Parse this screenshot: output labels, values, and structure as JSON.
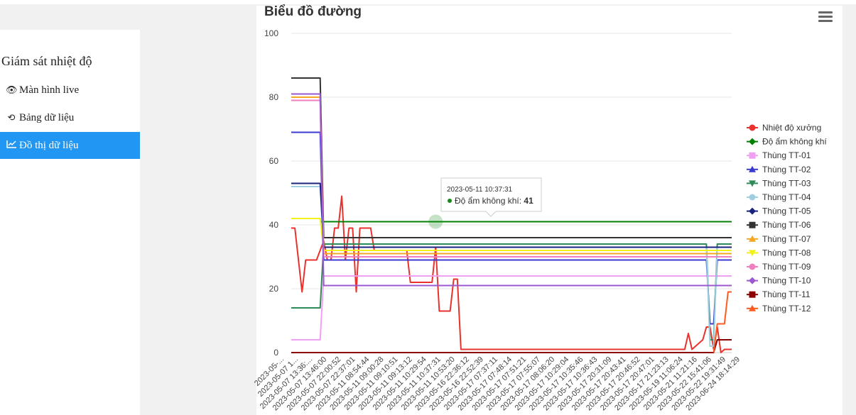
{
  "sidebar": {
    "title": "Giám sát nhiệt độ",
    "items": [
      {
        "label": "Màn hình live",
        "icon": "eye-icon",
        "glyph": "👁",
        "active": false
      },
      {
        "label": "Bảng dữ liệu",
        "icon": "history-icon",
        "glyph": "⟲",
        "active": false
      },
      {
        "label": "Đồ thị dữ liệu",
        "icon": "line-chart-icon",
        "glyph": "📈",
        "active": true
      }
    ]
  },
  "chart": {
    "title": "Biểu đồ đường",
    "menu_icon": "hamburger-menu-icon"
  },
  "tooltip": {
    "time": "2023-05-11 10:37:31",
    "series": "Độ ẩm không khí",
    "value": "41",
    "color": "#1a8a1a"
  },
  "chart_data": {
    "type": "line",
    "ylim": [
      0,
      100
    ],
    "yticks": [
      0,
      20,
      40,
      60,
      80,
      100
    ],
    "grid": true,
    "legend_position": "right",
    "categories": [
      "2023-05-...",
      "2023-05-07 1...",
      "2023-05-07 13:36:...",
      "2023-05-07 13:46:00",
      "2023-05-07 22:00:52",
      "2023-05-07 22:37:01",
      "2023-05-11 08:54:44",
      "2023-05-11 09:00:28",
      "2023-05-11 09:10:51",
      "2023-05-11 09:13:12",
      "2023-05-11 10:29:54",
      "2023-05-11 10:37:31",
      "2023-05-11 10:53:20",
      "2023-05-16 22:36:12",
      "2023-05-16 22:52:39",
      "2023-05-17 07:37:11",
      "2023-05-17 07:48:14",
      "2023-05-17 07:51:21",
      "2023-05-17 07:55:07",
      "2023-05-17 08:06:20",
      "2023-05-17 10:29:04",
      "2023-05-17 10:35:46",
      "2023-05-17 10:36:43",
      "2023-05-17 20:31:09",
      "2023-05-17 20:43:41",
      "2023-05-17 20:46:52",
      "2023-05-17 20:47:01",
      "2023-05-17 21:23:13",
      "2023-05-19 11:06:24",
      "2023-05-21 11:21:16",
      "2023-05-22 15:41:06",
      "2023-05-22 19:31:49",
      "2023-06-24 18:14:29"
    ],
    "series": [
      {
        "name": "Nhiệt độ xưởng",
        "color": "#e8322d",
        "marker": "circle",
        "points": [
          [
            0,
            39
          ],
          [
            1,
            39
          ],
          [
            3,
            19
          ],
          [
            4,
            29
          ],
          [
            7,
            29
          ],
          [
            9,
            35
          ],
          [
            10,
            29
          ],
          [
            11,
            29
          ],
          [
            12,
            39
          ],
          [
            13,
            39
          ],
          [
            14,
            49
          ],
          [
            15,
            29
          ],
          [
            16,
            39
          ],
          [
            17,
            39
          ],
          [
            18,
            19
          ],
          [
            19,
            39
          ],
          [
            22,
            39
          ],
          [
            23,
            32
          ],
          [
            32,
            32
          ],
          [
            33,
            22
          ],
          [
            39,
            22
          ],
          [
            40,
            33
          ],
          [
            41,
            13
          ],
          [
            44,
            13
          ],
          [
            45,
            23
          ],
          [
            46,
            23
          ],
          [
            47,
            1
          ],
          [
            109,
            1
          ],
          [
            110,
            6
          ],
          [
            111,
            1
          ],
          [
            114,
            4
          ],
          [
            115,
            8
          ],
          [
            116,
            8
          ],
          [
            117,
            1
          ],
          [
            118,
            8
          ],
          [
            119,
            0
          ],
          [
            120,
            1
          ],
          [
            122,
            1
          ]
        ]
      },
      {
        "name": "Độ ẩm không khí",
        "color": "#008000",
        "marker": "diamond",
        "points": [
          [
            8,
            41
          ],
          [
            122,
            41
          ]
        ]
      },
      {
        "name": "Thùng TT-01",
        "color": "#f0a0f0",
        "marker": "square",
        "points": [
          [
            0,
            4
          ],
          [
            8,
            4
          ],
          [
            9,
            24
          ],
          [
            122,
            24
          ]
        ]
      },
      {
        "name": "Thùng TT-02",
        "color": "#3a3ad0",
        "marker": "triangle",
        "points": [
          [
            0,
            69
          ],
          [
            8,
            69
          ],
          [
            9,
            29
          ],
          [
            115,
            29
          ],
          [
            116,
            9
          ],
          [
            117,
            9
          ],
          [
            118,
            29
          ],
          [
            122,
            29
          ]
        ]
      },
      {
        "name": "Thùng TT-03",
        "color": "#2e8b57",
        "marker": "triangle-down",
        "points": [
          [
            0,
            14
          ],
          [
            8,
            14
          ],
          [
            9,
            34
          ],
          [
            115,
            34
          ],
          [
            116,
            4
          ],
          [
            117,
            4
          ],
          [
            118,
            34
          ],
          [
            122,
            34
          ]
        ]
      },
      {
        "name": "Thùng TT-04",
        "color": "#9fcfe0",
        "marker": "circle",
        "points": [
          [
            0,
            52
          ],
          [
            8,
            52
          ],
          [
            9,
            33
          ],
          [
            115,
            33
          ],
          [
            116,
            2
          ],
          [
            117,
            2
          ],
          [
            118,
            33
          ],
          [
            122,
            33
          ]
        ]
      },
      {
        "name": "Thùng TT-05",
        "color": "#1a237e",
        "marker": "diamond",
        "points": [
          [
            0,
            53
          ],
          [
            8,
            53
          ],
          [
            9,
            33
          ],
          [
            122,
            33
          ]
        ]
      },
      {
        "name": "Thùng TT-06",
        "color": "#333333",
        "marker": "square",
        "points": [
          [
            0,
            86
          ],
          [
            8,
            86
          ],
          [
            9,
            36
          ],
          [
            122,
            36
          ]
        ]
      },
      {
        "name": "Thùng TT-07",
        "color": "#f5a623",
        "marker": "triangle",
        "points": [
          [
            0,
            80
          ],
          [
            8,
            80
          ],
          [
            9,
            31
          ],
          [
            122,
            31
          ]
        ]
      },
      {
        "name": "Thùng TT-08",
        "color": "#f2f21a",
        "marker": "triangle-down",
        "points": [
          [
            0,
            42
          ],
          [
            8,
            42
          ],
          [
            9,
            32
          ],
          [
            122,
            32
          ]
        ]
      },
      {
        "name": "Thùng TT-09",
        "color": "#f07fc0",
        "marker": "circle",
        "points": [
          [
            0,
            79
          ],
          [
            8,
            79
          ],
          [
            9,
            30
          ],
          [
            122,
            30
          ]
        ]
      },
      {
        "name": "Thùng TT-10",
        "color": "#9b59d0",
        "marker": "diamond",
        "points": [
          [
            0,
            81
          ],
          [
            8,
            81
          ],
          [
            9,
            21
          ],
          [
            122,
            21
          ]
        ]
      },
      {
        "name": "Thùng TT-11",
        "color": "#8b0000",
        "marker": "square",
        "points": [
          [
            0,
            0
          ],
          [
            117,
            0
          ],
          [
            118,
            4
          ],
          [
            122,
            4
          ]
        ]
      },
      {
        "name": "Thùng TT-12",
        "color": "#ff5a1f",
        "marker": "triangle",
        "points": [
          [
            117,
            0
          ],
          [
            118,
            9
          ],
          [
            120,
            9
          ],
          [
            121,
            19
          ],
          [
            122,
            19
          ]
        ]
      }
    ]
  }
}
